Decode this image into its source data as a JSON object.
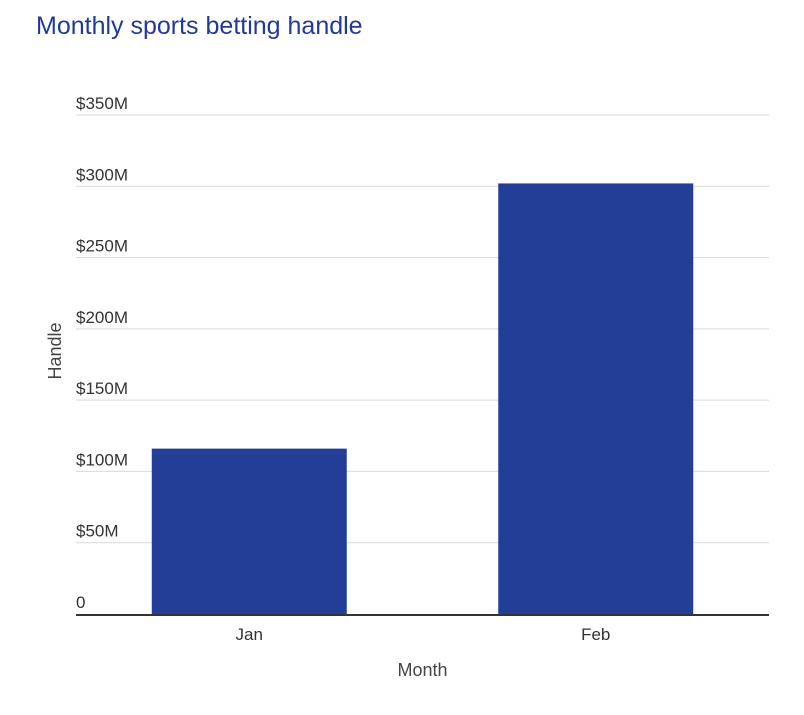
{
  "chart_data": {
    "type": "bar",
    "title": "Monthly sports betting handle",
    "xlabel": "Month",
    "ylabel": "Handle",
    "categories": [
      "Jan",
      "Feb"
    ],
    "values": [
      116,
      302
    ],
    "unit": "millions USD",
    "ylim": [
      0,
      350
    ],
    "yticks": [
      0,
      50,
      100,
      150,
      200,
      250,
      300,
      350
    ],
    "ytick_labels": [
      "0",
      "$50M",
      "$100M",
      "$150M",
      "$200M",
      "$250M",
      "$300M",
      "$350M"
    ],
    "grid": true,
    "bar_color": "#223e96",
    "title_color": "#22399a"
  }
}
